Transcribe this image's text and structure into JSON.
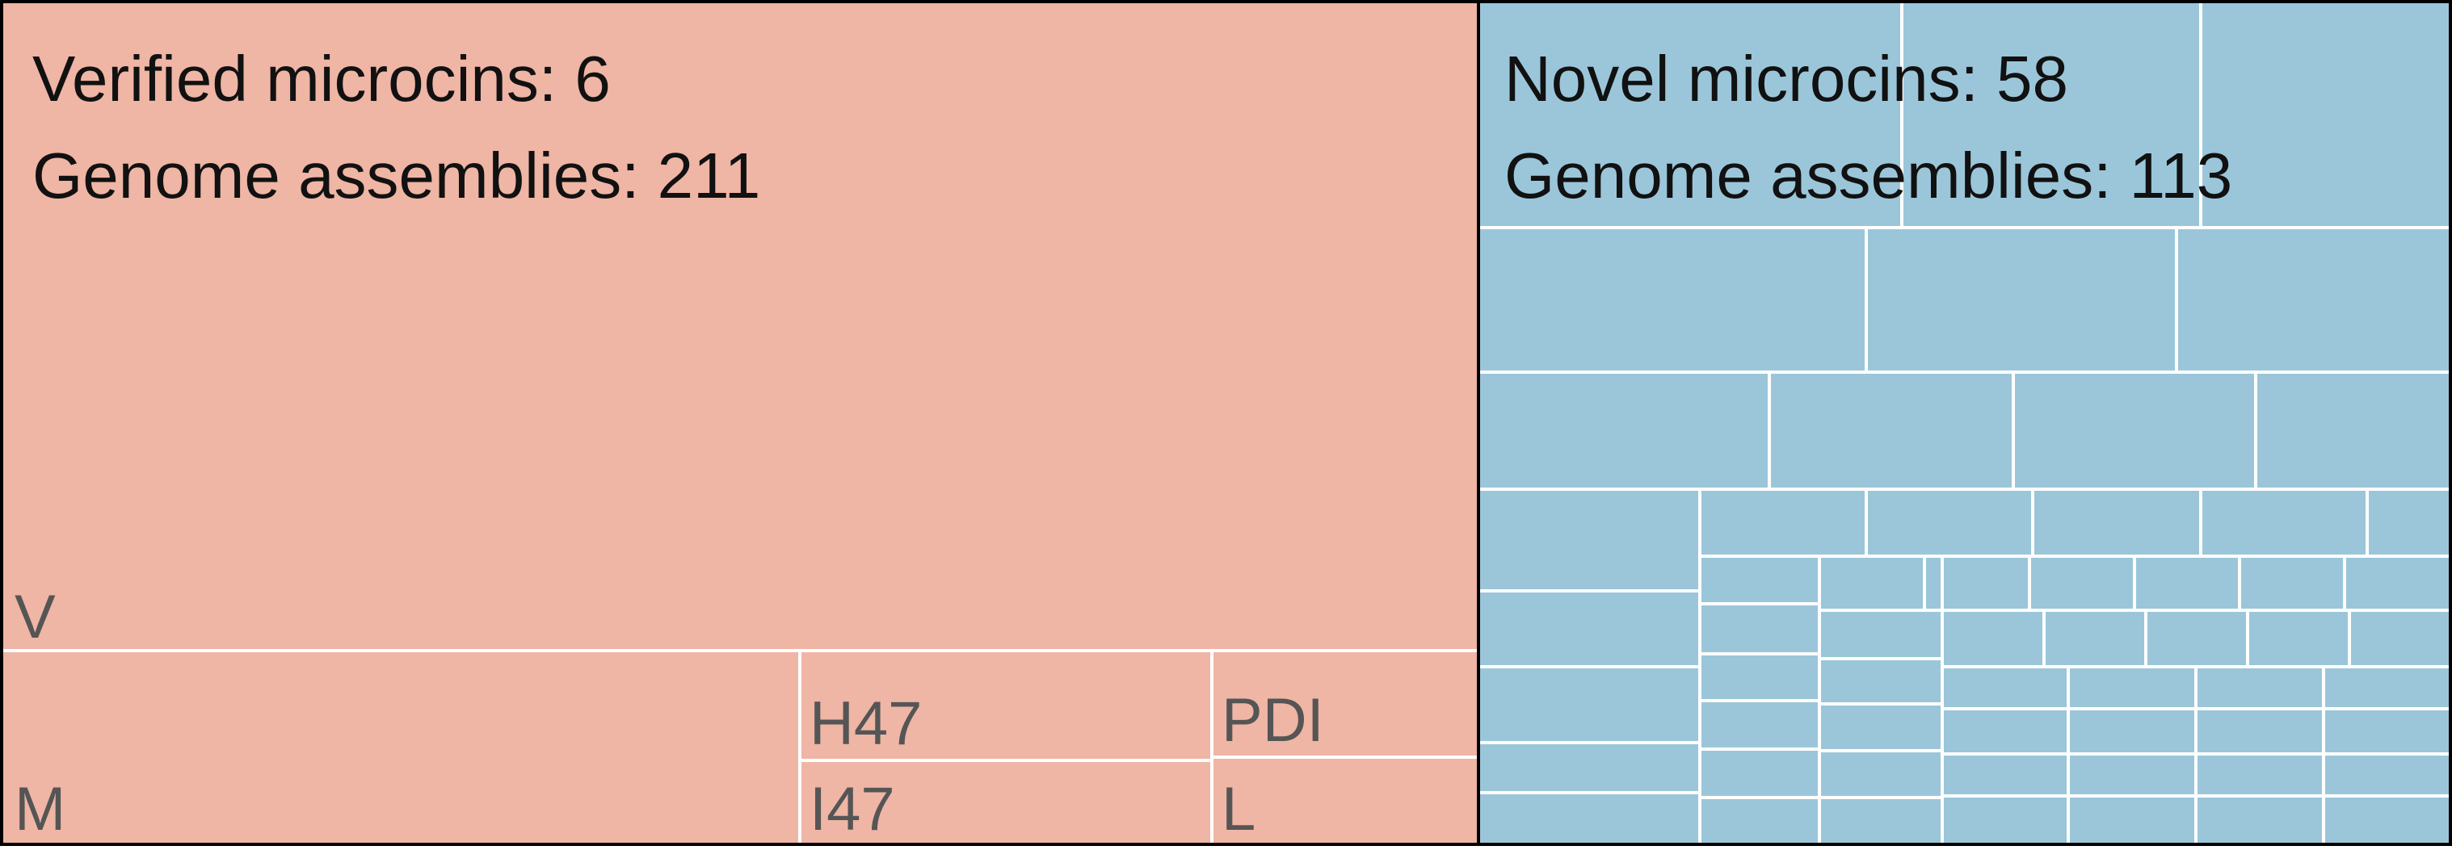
{
  "chart_data": {
    "type": "treemap",
    "colors": {
      "verified": "#efb5a5",
      "novel": "#9bc6da",
      "divider": "#ffffff",
      "border": "#000000",
      "heading_text": "#111111",
      "leaf_label_text": "#555555"
    },
    "groups": [
      {
        "id": "verified",
        "heading": [
          "Verified microcins: 6",
          "Genome assemblies: 211"
        ],
        "microcin_count": 6,
        "genome_assemblies": 211,
        "leaves": [
          {
            "label": "V"
          },
          {
            "label": "M"
          },
          {
            "label": "H47"
          },
          {
            "label": "I47"
          },
          {
            "label": "PDI"
          },
          {
            "label": "L"
          }
        ]
      },
      {
        "id": "novel",
        "heading": [
          "Novel microcins: 58",
          "Genome assemblies: 113"
        ],
        "microcin_count": 58,
        "genome_assemblies": 113,
        "leaves": []
      }
    ]
  }
}
